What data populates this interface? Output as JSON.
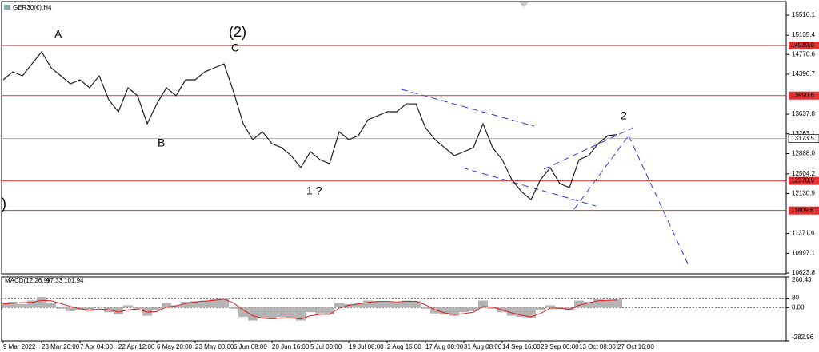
{
  "chart_data": [
    {
      "type": "line",
      "title": "GER30(€),H4",
      "categories": [
        "9 Mar 2022",
        null,
        null,
        null,
        "23 Mar 20:00",
        null,
        null,
        null,
        "7 Apr 04:00",
        null,
        null,
        null,
        "22 Apr 12:00",
        null,
        null,
        null,
        "6 May 20:00",
        null,
        null,
        null,
        "23 May 00:00",
        null,
        null,
        null,
        "6 Jun 08:00",
        null,
        null,
        null,
        "20 Jun 16:00",
        null,
        null,
        null,
        "5 Jul 00:00",
        null,
        null,
        null,
        "19 Jul 08:00",
        null,
        null,
        null,
        "2 Aug 16:00",
        null,
        null,
        null,
        "17 Aug 00:00",
        null,
        null,
        null,
        "31 Aug 08:00",
        null,
        null,
        null,
        "14 Sep 16:00",
        null,
        null,
        null,
        "29 Sep 00:00",
        null,
        null,
        null,
        "13 Oct 08:00",
        null,
        null,
        null,
        "27 Oct 16:00"
      ],
      "values": [
        14289,
        14440,
        14365,
        14592,
        14819,
        14516,
        14365,
        14213,
        14289,
        14137,
        14365,
        13910,
        13683,
        14137,
        13986,
        13456,
        13834,
        14137,
        13986,
        14289,
        14289,
        14440,
        14516,
        14592,
        14061,
        13456,
        13153,
        13304,
        13077,
        13001,
        12850,
        12622,
        12925,
        12774,
        12698,
        13304,
        13153,
        13229,
        13531,
        13607,
        13683,
        13683,
        13834,
        13834,
        13380,
        13153,
        13001,
        12850,
        12925,
        13001,
        13456,
        13001,
        12774,
        12395,
        12168,
        12016,
        12395,
        12622,
        12319,
        12243,
        12774,
        12850,
        13077,
        13229,
        13250
      ],
      "color": "#1f1f1f",
      "ylim": [
        10578,
        15804
      ],
      "yticks": [
        15516.1,
        15135.4,
        14770.6,
        14396.7,
        13637.8,
        13263.1,
        {
          "value": 12888,
          "label": "12888.0"
        },
        12504.2,
        12130.9,
        11371.6,
        10997.1,
        10623.8
      ],
      "levels": [
        {
          "value": 14939,
          "label": "14939.0"
        },
        13990.6,
        12370.9,
        11809.8
      ],
      "level_color": "#e03030",
      "current_price": 13173.5,
      "annotations": [
        {
          "text": "A",
          "color": "#2424d0"
        },
        {
          "text": "(2)",
          "color": "#e01818"
        },
        {
          "text": "C",
          "color": "#2424d0"
        },
        {
          "text": "B",
          "color": "#2424d0"
        },
        {
          "text": "1 ?",
          "color": "#2424d0"
        },
        {
          "text": "2",
          "color": "#2424d0"
        },
        {
          "text": ")",
          "color": "#e01818"
        }
      ]
    },
    {
      "type": "bar",
      "title": "MACD(12,26,9)",
      "readout": [
        97.33,
        101.94
      ],
      "values": [
        40,
        50,
        30,
        60,
        90,
        40,
        -10,
        -30,
        -20,
        -30,
        10,
        -40,
        -60,
        20,
        -10,
        -70,
        -20,
        40,
        20,
        50,
        55,
        60,
        70,
        80,
        -10,
        -80,
        -110,
        -90,
        -100,
        -80,
        -90,
        -110,
        -40,
        -50,
        -60,
        40,
        30,
        35,
        60,
        55,
        50,
        45,
        60,
        55,
        -10,
        -50,
        -60,
        -70,
        -40,
        -30,
        60,
        -10,
        -40,
        -70,
        -80,
        -90,
        -20,
        20,
        -10,
        -20,
        60,
        50,
        70,
        65,
        70
      ],
      "signal": [
        30,
        38,
        42,
        45,
        62,
        58,
        35,
        10,
        -10,
        -22,
        -12,
        -18,
        -38,
        -20,
        -12,
        -38,
        -35,
        5,
        15,
        35,
        48,
        55,
        62,
        72,
        40,
        -20,
        -70,
        -90,
        -95,
        -88,
        -88,
        -98,
        -70,
        -58,
        -58,
        -5,
        20,
        30,
        45,
        52,
        52,
        48,
        52,
        54,
        25,
        -20,
        -45,
        -60,
        -52,
        -40,
        10,
        5,
        -20,
        -45,
        -65,
        -80,
        -50,
        -5,
        -5,
        -15,
        20,
        40,
        58,
        62,
        64
      ],
      "color": "#b4b4b4",
      "signal_color": "#e02020",
      "ylim": [
        -282.96,
        260.43
      ],
      "yticks": [
        260.43,
        80,
        {
          "value": 0,
          "label": "0.00"
        },
        -282.96
      ]
    }
  ]
}
